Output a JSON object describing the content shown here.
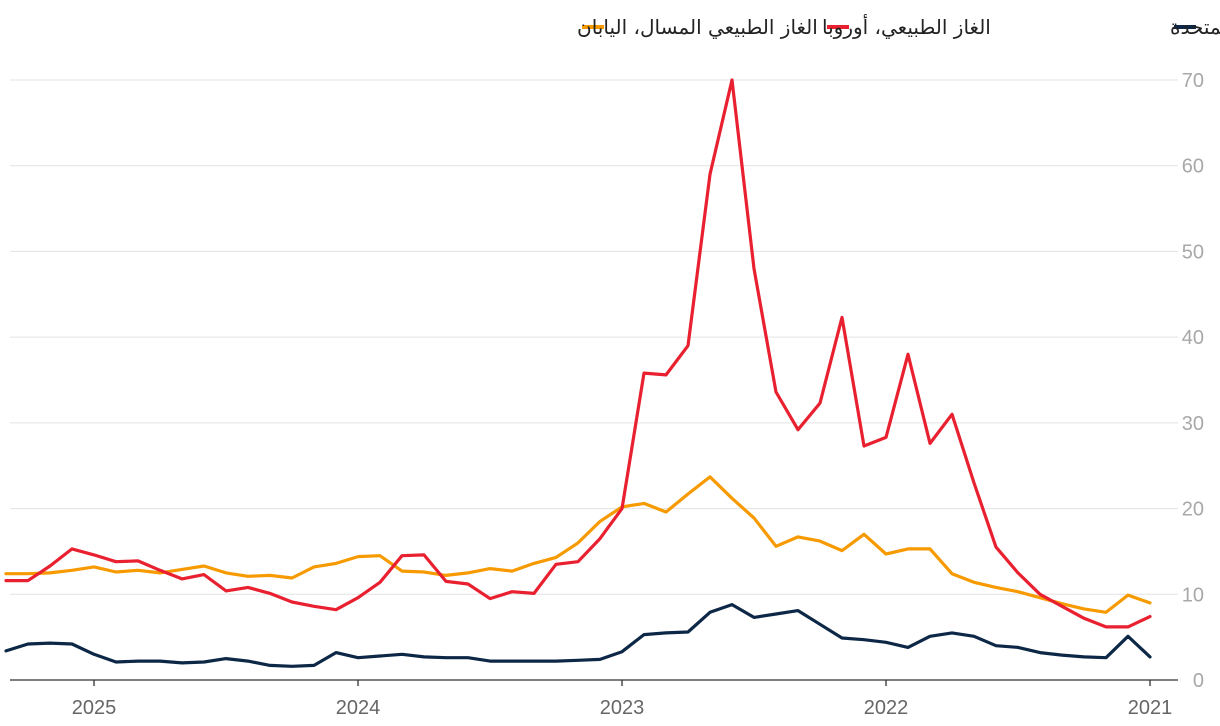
{
  "chart_data": {
    "type": "line",
    "title": "",
    "xlabel": "",
    "ylabel": "",
    "ylim": [
      0,
      70
    ],
    "yticks": [
      "0",
      "10",
      "20",
      "30",
      "40",
      "50",
      "60",
      "70"
    ],
    "xticks": [
      "2021",
      "2022",
      "2023",
      "2024",
      "2025"
    ],
    "legend_position": "top",
    "x_direction": "right-to-left",
    "x": [
      "2021-01",
      "2021-02",
      "2021-03",
      "2021-04",
      "2021-05",
      "2021-06",
      "2021-07",
      "2021-08",
      "2021-09",
      "2021-10",
      "2021-11",
      "2021-12",
      "2022-01",
      "2022-02",
      "2022-03",
      "2022-04",
      "2022-05",
      "2022-06",
      "2022-07",
      "2022-08",
      "2022-09",
      "2022-10",
      "2022-11",
      "2022-12",
      "2023-01",
      "2023-02",
      "2023-03",
      "2023-04",
      "2023-05",
      "2023-06",
      "2023-07",
      "2023-08",
      "2023-09",
      "2023-10",
      "2023-11",
      "2023-12",
      "2024-01",
      "2024-02",
      "2024-03",
      "2024-04",
      "2024-05",
      "2024-06",
      "2024-07",
      "2024-08",
      "2024-09",
      "2024-10",
      "2024-11",
      "2024-12",
      "2025-01",
      "2025-02",
      "2025-03",
      "2025-04",
      "2025-05"
    ],
    "series": [
      {
        "name": "الغاز الطبيعي، الولايات المتحدة",
        "color": "#0d2847",
        "values": [
          2.7,
          5.1,
          2.6,
          2.7,
          2.9,
          3.2,
          3.8,
          4.0,
          5.1,
          5.5,
          5.1,
          3.8,
          4.4,
          4.7,
          4.9,
          6.5,
          8.1,
          7.7,
          7.3,
          8.8,
          7.9,
          5.6,
          5.5,
          5.3,
          3.3,
          2.4,
          2.3,
          2.2,
          2.2,
          2.2,
          2.2,
          2.6,
          2.6,
          2.7,
          3.0,
          2.8,
          2.6,
          3.2,
          1.7,
          1.6,
          1.7,
          2.2,
          2.5,
          2.1,
          2.0,
          2.2,
          2.2,
          2.1,
          3.0,
          4.2,
          4.3,
          4.2,
          3.4
        ]
      },
      {
        "name": "الغاز الطبيعي، أوروبا",
        "color": "#e8202f",
        "values": [
          7.4,
          6.2,
          6.2,
          7.2,
          8.6,
          10.0,
          12.5,
          15.5,
          23.0,
          31.0,
          27.6,
          38.0,
          28.3,
          27.3,
          42.3,
          32.3,
          29.2,
          33.6,
          48.0,
          70.0,
          59.0,
          39.0,
          35.6,
          35.8,
          20.0,
          16.5,
          13.8,
          13.5,
          10.1,
          10.3,
          9.5,
          11.2,
          11.5,
          14.6,
          14.5,
          11.4,
          9.6,
          8.2,
          8.6,
          9.1,
          10.1,
          10.8,
          10.4,
          12.3,
          11.8,
          12.8,
          13.9,
          13.8,
          14.6,
          15.3,
          13.3,
          11.6,
          11.6
        ]
      },
      {
        "name": "الغاز الطبيعي المسال، اليابان",
        "color": "#f79a00",
        "values": [
          9.0,
          9.9,
          7.9,
          8.3,
          8.9,
          9.6,
          10.3,
          10.8,
          11.4,
          12.4,
          15.3,
          15.3,
          14.7,
          17.0,
          15.1,
          16.2,
          16.7,
          15.6,
          18.9,
          21.2,
          23.7,
          21.7,
          19.6,
          20.6,
          20.2,
          18.5,
          16.0,
          14.3,
          13.6,
          12.7,
          13.0,
          12.5,
          12.2,
          12.6,
          12.7,
          14.5,
          14.4,
          13.6,
          13.2,
          11.9,
          12.2,
          12.1,
          12.5,
          13.3,
          12.9,
          12.5,
          12.8,
          12.6,
          13.2,
          12.8,
          12.5,
          12.4,
          12.4
        ]
      }
    ]
  }
}
